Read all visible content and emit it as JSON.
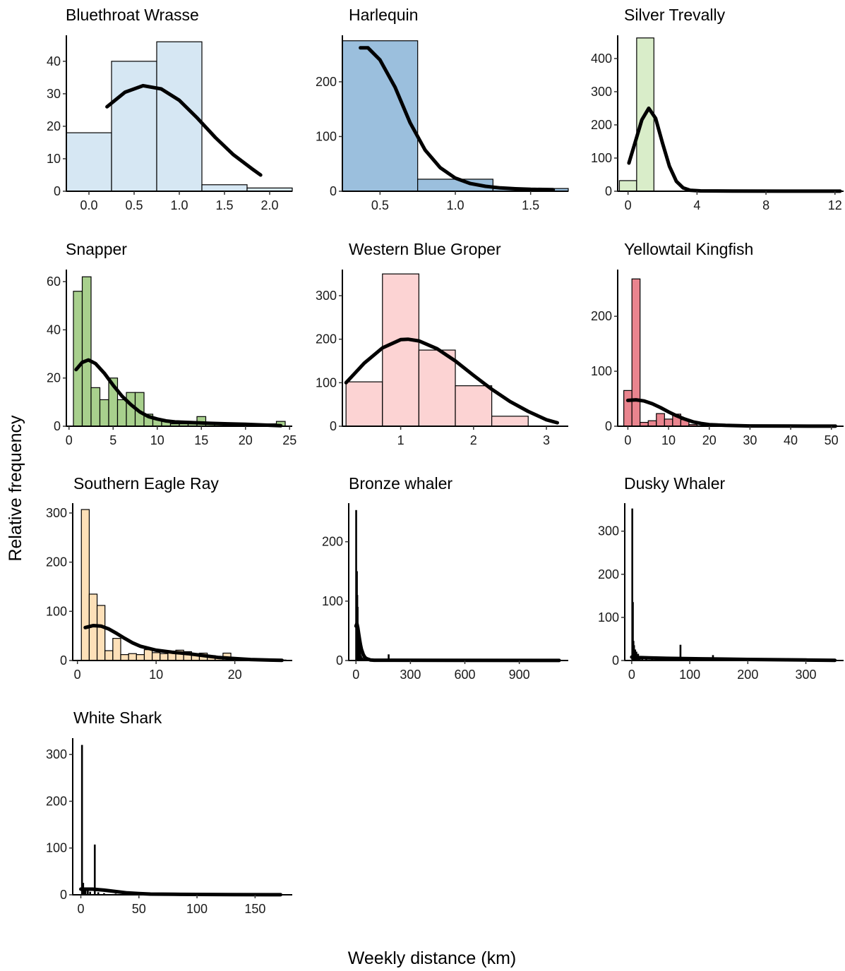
{
  "figure": {
    "ylabel": "Relative frequency",
    "xlabel": "Weekly distance (km)"
  },
  "chart_data": [
    {
      "type": "bar",
      "title": "Bluethroat Wrasse",
      "fill": "#d6e7f3",
      "bin_width": 0.5,
      "bins": [
        [
          0.0,
          18
        ],
        [
          0.5,
          40
        ],
        [
          1.0,
          46
        ],
        [
          1.5,
          2
        ],
        [
          2.0,
          1
        ]
      ],
      "xlim": [
        -0.25,
        2.25
      ],
      "ylim": [
        0,
        48
      ],
      "xticks": [
        0.0,
        0.5,
        1.0,
        1.5,
        2.0
      ],
      "xtick_labels": [
        "0.0",
        "0.5",
        "1.0",
        "1.5",
        "2.0"
      ],
      "yticks": [
        0,
        10,
        20,
        30,
        40
      ],
      "curve": [
        [
          0.2,
          26
        ],
        [
          0.4,
          30.5
        ],
        [
          0.6,
          32.5
        ],
        [
          0.8,
          31.5
        ],
        [
          1.0,
          28
        ],
        [
          1.2,
          22.5
        ],
        [
          1.4,
          16.5
        ],
        [
          1.6,
          11.2
        ],
        [
          1.8,
          7
        ],
        [
          1.9,
          5
        ]
      ]
    },
    {
      "type": "bar",
      "title": "Harlequin",
      "fill": "#9bbfdd",
      "bin_width": 0.5,
      "bins": [
        [
          0.5,
          275
        ],
        [
          1.0,
          22
        ],
        [
          1.5,
          5
        ]
      ],
      "xlim": [
        0.25,
        1.75
      ],
      "ylim": [
        0,
        285
      ],
      "xticks": [
        0.5,
        1.0,
        1.5
      ],
      "xtick_labels": [
        "0.5",
        "1.0",
        "1.5"
      ],
      "yticks": [
        0,
        100,
        200
      ],
      "curve": [
        [
          0.37,
          262
        ],
        [
          0.42,
          262
        ],
        [
          0.5,
          240
        ],
        [
          0.6,
          190
        ],
        [
          0.7,
          125
        ],
        [
          0.8,
          75
        ],
        [
          0.9,
          43
        ],
        [
          1.0,
          24
        ],
        [
          1.1,
          14
        ],
        [
          1.2,
          9
        ],
        [
          1.3,
          6
        ],
        [
          1.4,
          4.5
        ],
        [
          1.5,
          3.5
        ],
        [
          1.65,
          3
        ]
      ]
    },
    {
      "type": "bar",
      "title": "Silver Trevally",
      "fill": "#d9edc9",
      "bin_width": 1,
      "bins": [
        [
          0,
          32
        ],
        [
          1,
          462
        ]
      ],
      "xlim": [
        -0.6,
        12.5
      ],
      "ylim": [
        0,
        470
      ],
      "xticks": [
        0,
        4,
        8,
        12
      ],
      "xtick_labels": [
        "0",
        "4",
        "8",
        "12"
      ],
      "yticks": [
        0,
        100,
        200,
        300,
        400
      ],
      "curve": [
        [
          0.05,
          85
        ],
        [
          0.4,
          145
        ],
        [
          0.8,
          215
        ],
        [
          1.2,
          250
        ],
        [
          1.6,
          220
        ],
        [
          2.0,
          145
        ],
        [
          2.4,
          75
        ],
        [
          2.8,
          30
        ],
        [
          3.2,
          10
        ],
        [
          3.6,
          3
        ],
        [
          4.2,
          1
        ],
        [
          6,
          0.5
        ],
        [
          9,
          0.3
        ],
        [
          12.3,
          0.2
        ]
      ]
    },
    {
      "type": "bar",
      "title": "Snapper",
      "fill": "#a8d08d",
      "bin_width": 1,
      "bins": [
        [
          1,
          56
        ],
        [
          2,
          62
        ],
        [
          3,
          16
        ],
        [
          4,
          11
        ],
        [
          5,
          20
        ],
        [
          6,
          11
        ],
        [
          7,
          14
        ],
        [
          8,
          14
        ],
        [
          9,
          5
        ],
        [
          10,
          3
        ],
        [
          11,
          2
        ],
        [
          12,
          1
        ],
        [
          13,
          1
        ],
        [
          14,
          1
        ],
        [
          15,
          4
        ],
        [
          16,
          1
        ],
        [
          17,
          1
        ],
        [
          18,
          1
        ],
        [
          19,
          1
        ],
        [
          20,
          1
        ],
        [
          21,
          1
        ],
        [
          22,
          1
        ],
        [
          23,
          1
        ],
        [
          24,
          2
        ]
      ],
      "xlim": [
        -0.3,
        25.3
      ],
      "ylim": [
        0,
        65
      ],
      "xticks": [
        0,
        5,
        10,
        15,
        20,
        25
      ],
      "xtick_labels": [
        "0",
        "5",
        "10",
        "15",
        "20",
        "25"
      ],
      "yticks": [
        0,
        20,
        40,
        60
      ],
      "curve": [
        [
          0.8,
          23.5
        ],
        [
          1.5,
          26.5
        ],
        [
          2.2,
          27.5
        ],
        [
          3,
          26
        ],
        [
          4,
          22
        ],
        [
          5,
          17
        ],
        [
          6,
          12.5
        ],
        [
          7,
          9
        ],
        [
          8,
          6
        ],
        [
          9,
          4
        ],
        [
          10,
          3
        ],
        [
          11,
          2.2
        ],
        [
          12,
          1.8
        ],
        [
          14,
          1.5
        ],
        [
          16,
          1.2
        ],
        [
          18,
          1.0
        ],
        [
          20,
          0.8
        ],
        [
          22,
          0.5
        ],
        [
          24,
          0.2
        ]
      ]
    },
    {
      "type": "bar",
      "title": "Western Blue Groper",
      "fill": "#fcd3d3",
      "bin_width": 0.5,
      "bins": [
        [
          0.5,
          102
        ],
        [
          1.0,
          350
        ],
        [
          1.5,
          175
        ],
        [
          2.0,
          93
        ],
        [
          2.5,
          23
        ]
      ],
      "xlim": [
        0.2,
        3.3
      ],
      "ylim": [
        0,
        360
      ],
      "xticks": [
        1,
        2,
        3
      ],
      "xtick_labels": [
        "1",
        "2",
        "3"
      ],
      "yticks": [
        0,
        100,
        200,
        300
      ],
      "curve": [
        [
          0.25,
          100
        ],
        [
          0.5,
          145
        ],
        [
          0.75,
          180
        ],
        [
          1.0,
          199
        ],
        [
          1.1,
          200
        ],
        [
          1.25,
          196
        ],
        [
          1.5,
          178
        ],
        [
          1.75,
          150
        ],
        [
          2.0,
          117
        ],
        [
          2.25,
          85
        ],
        [
          2.5,
          57
        ],
        [
          2.75,
          34
        ],
        [
          3.0,
          15
        ],
        [
          3.15,
          8
        ]
      ]
    },
    {
      "type": "bar",
      "title": "Yellowtail Kingfish",
      "fill": "#e9848e",
      "bin_width": 2,
      "bins": [
        [
          0,
          65
        ],
        [
          2,
          268
        ],
        [
          4,
          7
        ],
        [
          6,
          10
        ],
        [
          8,
          23
        ],
        [
          10,
          13
        ],
        [
          12,
          22
        ],
        [
          14,
          12
        ],
        [
          16,
          3
        ],
        [
          18,
          1
        ]
      ],
      "xlim": [
        -2.5,
        53
      ],
      "ylim": [
        0,
        285
      ],
      "xticks": [
        0,
        10,
        20,
        30,
        40,
        50
      ],
      "xtick_labels": [
        "0",
        "10",
        "20",
        "30",
        "40",
        "50"
      ],
      "yticks": [
        0,
        100,
        200
      ],
      "curve": [
        [
          0,
          47
        ],
        [
          2,
          48
        ],
        [
          4,
          46
        ],
        [
          6,
          41
        ],
        [
          8,
          34
        ],
        [
          10,
          26
        ],
        [
          12,
          19
        ],
        [
          14,
          13
        ],
        [
          16,
          8
        ],
        [
          18,
          5
        ],
        [
          20,
          3
        ],
        [
          24,
          1.5
        ],
        [
          30,
          0.5
        ],
        [
          40,
          0.2
        ],
        [
          51,
          0.1
        ]
      ]
    },
    {
      "type": "bar",
      "title": "Southern Eagle Ray",
      "fill": "#fde0b8",
      "bin_width": 1,
      "bins": [
        [
          1,
          307
        ],
        [
          2,
          135
        ],
        [
          3,
          112
        ],
        [
          4,
          20
        ],
        [
          5,
          45
        ],
        [
          6,
          12
        ],
        [
          7,
          14
        ],
        [
          8,
          12
        ],
        [
          9,
          22
        ],
        [
          10,
          16
        ],
        [
          11,
          14
        ],
        [
          12,
          17
        ],
        [
          13,
          21
        ],
        [
          14,
          18
        ],
        [
          15,
          14
        ],
        [
          16,
          15
        ],
        [
          17,
          10
        ],
        [
          18,
          8
        ],
        [
          19,
          15
        ],
        [
          20,
          2
        ],
        [
          21,
          1
        ],
        [
          22,
          1
        ],
        [
          23,
          1
        ],
        [
          24,
          1
        ],
        [
          25,
          1
        ],
        [
          26,
          1
        ]
      ],
      "xlim": [
        -0.6,
        27.3
      ],
      "ylim": [
        0,
        320
      ],
      "xticks": [
        0,
        10,
        20
      ],
      "xtick_labels": [
        "0",
        "10",
        "20"
      ],
      "yticks": [
        0,
        100,
        200,
        300
      ],
      "curve": [
        [
          1,
          67
        ],
        [
          2,
          71
        ],
        [
          3,
          70
        ],
        [
          4,
          64
        ],
        [
          5,
          55
        ],
        [
          6,
          45
        ],
        [
          7,
          36
        ],
        [
          8,
          29
        ],
        [
          10,
          21
        ],
        [
          12,
          17
        ],
        [
          14,
          14
        ],
        [
          16,
          10
        ],
        [
          18,
          6
        ],
        [
          20,
          4
        ],
        [
          22,
          2
        ],
        [
          24,
          1
        ],
        [
          26,
          0.5
        ]
      ]
    },
    {
      "type": "bar",
      "title": "Bronze whaler",
      "fill": "#000000",
      "bin_width": 1,
      "bins": [
        [
          1,
          253
        ],
        [
          3,
          70
        ],
        [
          5,
          150
        ],
        [
          7,
          110
        ],
        [
          9,
          90
        ],
        [
          11,
          60
        ],
        [
          13,
          45
        ],
        [
          15,
          40
        ],
        [
          17,
          35
        ],
        [
          19,
          25
        ],
        [
          21,
          20
        ],
        [
          24,
          12
        ],
        [
          28,
          8
        ],
        [
          35,
          5
        ],
        [
          45,
          3
        ],
        [
          60,
          2
        ],
        [
          90,
          2
        ],
        [
          180,
          10
        ]
      ],
      "xlim": [
        -40,
        1170
      ],
      "ylim": [
        0,
        265
      ],
      "xticks": [
        0,
        300,
        600,
        900
      ],
      "xtick_labels": [
        "0",
        "300",
        "600",
        "900"
      ],
      "yticks": [
        0,
        100,
        200
      ],
      "curve": [
        [
          0,
          58
        ],
        [
          5,
          62
        ],
        [
          10,
          55
        ],
        [
          15,
          45
        ],
        [
          20,
          35
        ],
        [
          25,
          26
        ],
        [
          30,
          19
        ],
        [
          40,
          10
        ],
        [
          50,
          5
        ],
        [
          60,
          3
        ],
        [
          80,
          1
        ],
        [
          100,
          0.5
        ],
        [
          200,
          0.5
        ],
        [
          500,
          0.2
        ],
        [
          1120,
          0.1
        ]
      ]
    },
    {
      "type": "bar",
      "title": "Dusky Whaler",
      "fill": "#000000",
      "bin_width": 0.8,
      "bins": [
        [
          1,
          352
        ],
        [
          2,
          135
        ],
        [
          3,
          45
        ],
        [
          4,
          35
        ],
        [
          6,
          25
        ],
        [
          8,
          20
        ],
        [
          11,
          15
        ],
        [
          14,
          10
        ],
        [
          18,
          6
        ],
        [
          25,
          5
        ],
        [
          35,
          5
        ],
        [
          60,
          8
        ],
        [
          84,
          36
        ],
        [
          140,
          12
        ],
        [
          170,
          5
        ],
        [
          195,
          3
        ],
        [
          230,
          2
        ],
        [
          270,
          2
        ]
      ],
      "xlim": [
        -12,
        365
      ],
      "ylim": [
        0,
        365
      ],
      "xticks": [
        0,
        100,
        200,
        300
      ],
      "xtick_labels": [
        "0",
        "100",
        "200",
        "300"
      ],
      "yticks": [
        0,
        100,
        200,
        300
      ],
      "curve": [
        [
          0,
          8
        ],
        [
          10,
          7
        ],
        [
          30,
          6
        ],
        [
          60,
          5
        ],
        [
          90,
          4.5
        ],
        [
          120,
          4
        ],
        [
          160,
          3.2
        ],
        [
          200,
          2.5
        ],
        [
          250,
          1.8
        ],
        [
          300,
          1.2
        ],
        [
          350,
          0.5
        ]
      ]
    },
    {
      "type": "bar",
      "title": "White Shark",
      "fill": "#000000",
      "bin_width": 0.8,
      "bins": [
        [
          1,
          320
        ],
        [
          2,
          25
        ],
        [
          3,
          15
        ],
        [
          4,
          10
        ],
        [
          6,
          8
        ],
        [
          8,
          6
        ],
        [
          12,
          107
        ],
        [
          15,
          5
        ],
        [
          20,
          3
        ],
        [
          30,
          2
        ]
      ],
      "xlim": [
        -7,
        182
      ],
      "ylim": [
        0,
        335
      ],
      "xticks": [
        0,
        50,
        100,
        150
      ],
      "xtick_labels": [
        "0",
        "50",
        "100",
        "150"
      ],
      "yticks": [
        0,
        100,
        200,
        300
      ],
      "curve": [
        [
          0,
          12
        ],
        [
          10,
          12
        ],
        [
          20,
          10
        ],
        [
          30,
          7
        ],
        [
          40,
          4
        ],
        [
          50,
          2.5
        ],
        [
          60,
          1.5
        ],
        [
          80,
          1
        ],
        [
          100,
          0.8
        ],
        [
          130,
          0.5
        ],
        [
          172,
          0.2
        ]
      ]
    }
  ]
}
